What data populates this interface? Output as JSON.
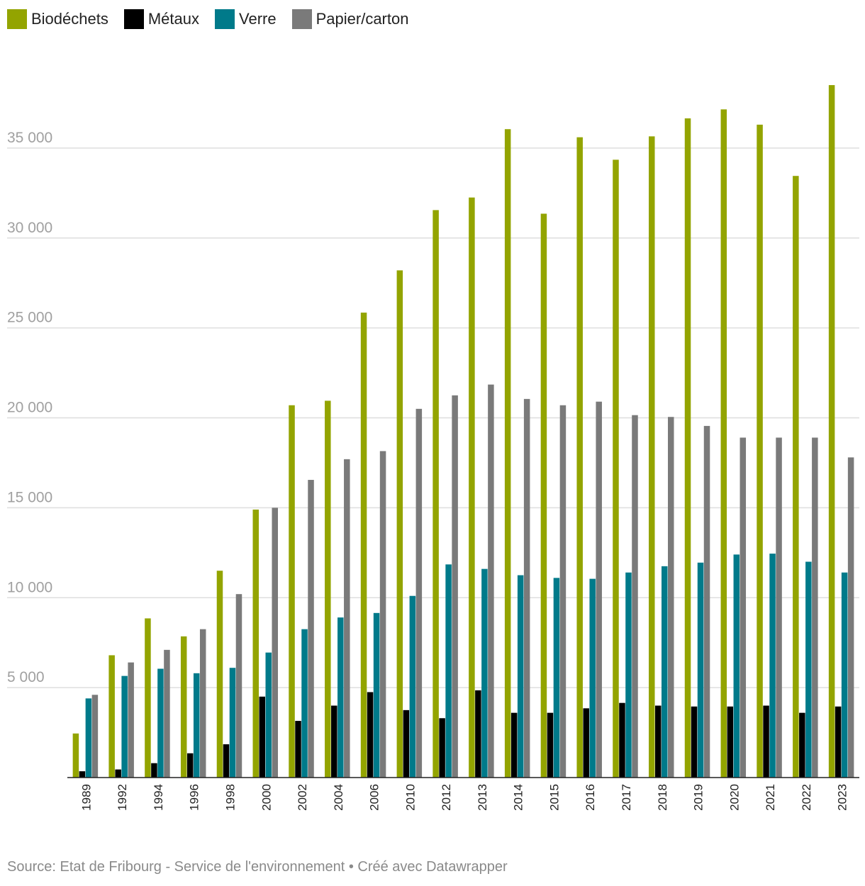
{
  "chart_data": {
    "type": "bar",
    "title": "",
    "xlabel": "",
    "ylabel": "",
    "ylim": [
      0,
      40000
    ],
    "y_ticks": [
      5000,
      10000,
      15000,
      20000,
      25000,
      30000,
      35000
    ],
    "y_tick_labels": [
      "5 000",
      "10 000",
      "15 000",
      "20 000",
      "25 000",
      "30 000",
      "35 000"
    ],
    "categories": [
      "1989",
      "1992",
      "1994",
      "1996",
      "1998",
      "2000",
      "2002",
      "2004",
      "2006",
      "2010",
      "2012",
      "2013",
      "2014",
      "2015",
      "2016",
      "2017",
      "2018",
      "2019",
      "2020",
      "2021",
      "2022",
      "2023"
    ],
    "series": [
      {
        "name": "Biodéchets",
        "color": "#93a400",
        "values": [
          2450,
          6800,
          8850,
          7850,
          11500,
          14900,
          20700,
          20950,
          25850,
          28200,
          31550,
          32250,
          36050,
          31350,
          35600,
          34350,
          35650,
          36650,
          37150,
          36300,
          33450,
          38500
        ]
      },
      {
        "name": "Métaux",
        "color": "#000000",
        "values": [
          350,
          450,
          800,
          1350,
          1850,
          4500,
          3150,
          4000,
          4750,
          3750,
          3300,
          4850,
          3600,
          3600,
          3850,
          4150,
          4000,
          3950,
          3950,
          4000,
          3600,
          3950
        ]
      },
      {
        "name": "Verre",
        "color": "#007a8a",
        "values": [
          4400,
          5650,
          6050,
          5800,
          6100,
          6950,
          8250,
          8900,
          9150,
          10100,
          11850,
          11600,
          11250,
          11100,
          11050,
          11400,
          11750,
          11950,
          12400,
          12450,
          12000,
          11400
        ]
      },
      {
        "name": "Papier/carton",
        "color": "#7a7a7a",
        "values": [
          4600,
          6400,
          7100,
          8250,
          10200,
          15000,
          16550,
          17700,
          18150,
          20500,
          21250,
          21850,
          21050,
          20700,
          20900,
          20150,
          20050,
          19550,
          18900,
          18900,
          18900,
          17800
        ]
      }
    ],
    "legend_position": "top-left",
    "grid": true
  },
  "source_text": "Source: Etat de Fribourg - Service de l'environnement • Créé avec Datawrapper"
}
